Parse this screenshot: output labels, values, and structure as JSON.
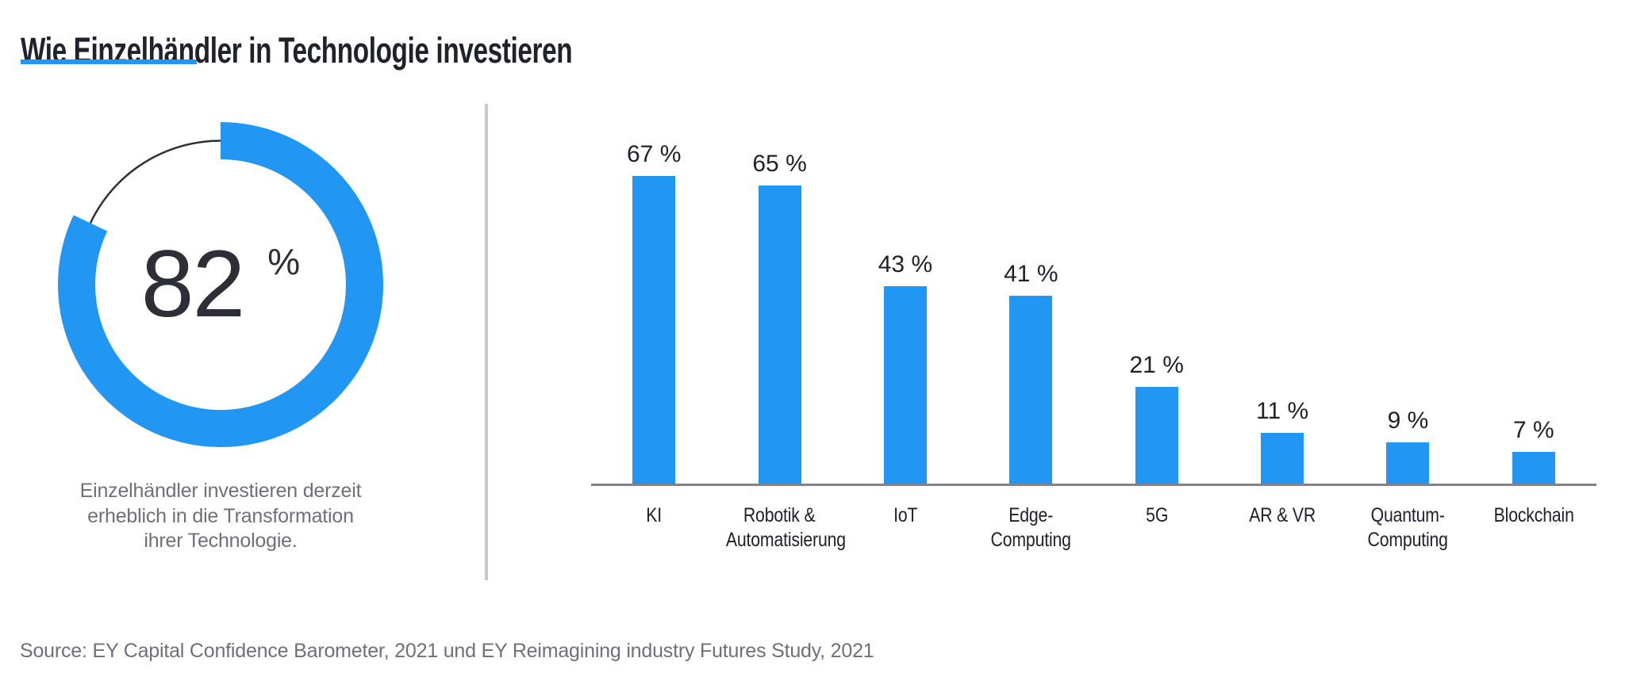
{
  "title": "Wie Einzelhändler in Technologie investieren",
  "source": "Source: EY Capital Confidence Barometer, 2021 und EY Reimagining industry Futures Study, 2021",
  "colors": {
    "accent": "#2196F3",
    "dark": "#21212C",
    "charcoal": "#2E2E38",
    "gray": "#6F6F7A",
    "axis": "#82828C",
    "divider": "#C7C7CE"
  },
  "donut": {
    "value_label": "82",
    "unit": "%",
    "caption": "Einzelhändler investieren derzeit\nerheblich in die Transformation\nihrer Technologie."
  },
  "chart_data": [
    {
      "type": "donut",
      "value": 82,
      "max": 100,
      "unit": "%",
      "label": "82 %",
      "caption": "Einzelhändler investieren derzeit erheblich in die Transformation ihrer Technologie.",
      "filled_color": "#2196F3",
      "remainder_style": "thin dark arc"
    },
    {
      "type": "bar",
      "title": "",
      "unit": "%",
      "categories": [
        "KI",
        "Robotik &\nAutomatisierung",
        "IoT",
        "Edge-Computing",
        "5G",
        "AR & VR",
        "Quantum-\nComputing",
        "Blockchain"
      ],
      "values": [
        67,
        65,
        43,
        41,
        21,
        11,
        9,
        7
      ],
      "value_labels": [
        "67 %",
        "65 %",
        "43 %",
        "41 %",
        "21 %",
        "11 %",
        "9 %",
        "7 %"
      ],
      "ylim": [
        0,
        80
      ],
      "grid": false,
      "legend": false,
      "axis": "baseline only"
    }
  ]
}
